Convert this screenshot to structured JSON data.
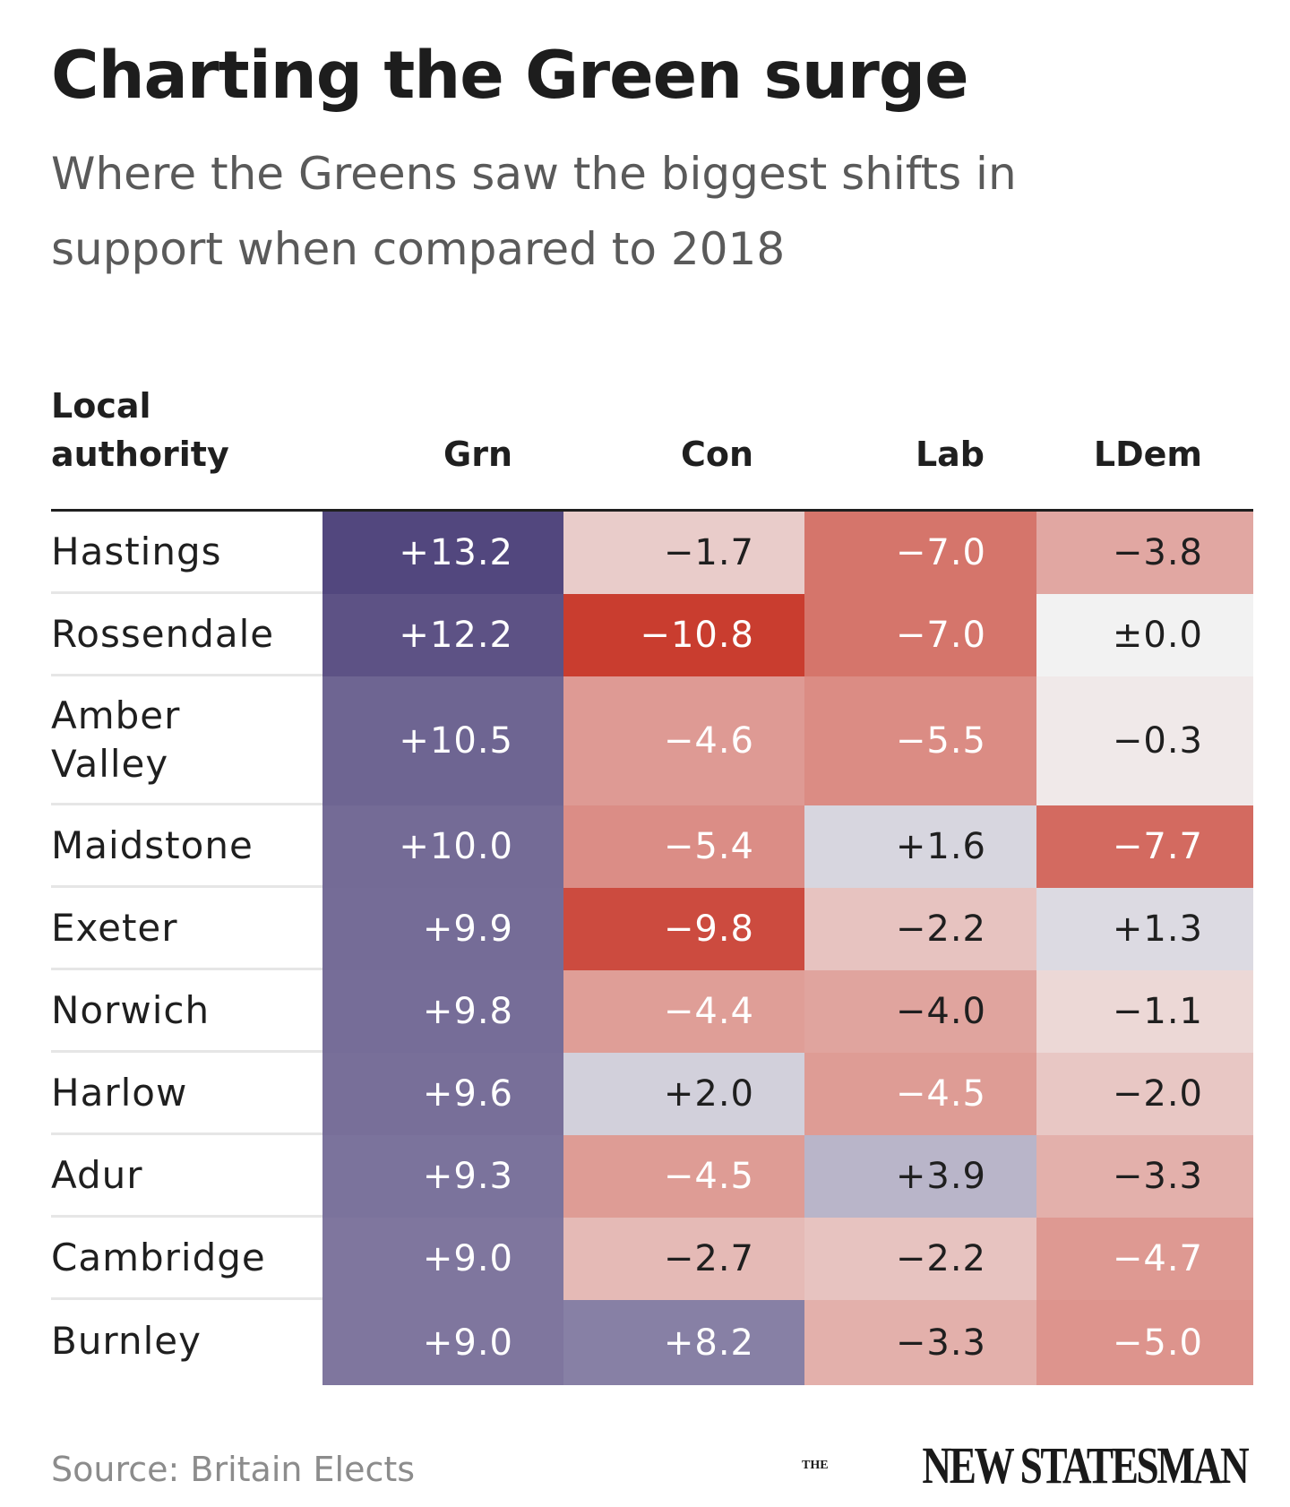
{
  "title": "Charting the Green surge",
  "subtitle": "Where the Greens saw the biggest shifts in support when compared to 2018",
  "source": "Source: Britain Elects",
  "logo": {
    "the": "THE",
    "name": "NEW STATESMAN"
  },
  "chart_data": {
    "type": "table",
    "columns": [
      "Local authority",
      "Grn",
      "Con",
      "Lab",
      "LDem"
    ],
    "rows": [
      {
        "name": "Hastings",
        "values": [
          "+13.2",
          "−1.7",
          "−7.0",
          "−3.8"
        ]
      },
      {
        "name": "Rossendale",
        "values": [
          "+12.2",
          "−10.8",
          "−7.0",
          "±0.0"
        ]
      },
      {
        "name": "Amber Valley",
        "values": [
          "+10.5",
          "−4.6",
          "−5.5",
          "−0.3"
        ]
      },
      {
        "name": "Maidstone",
        "values": [
          "+10.0",
          "−5.4",
          "+1.6",
          "−7.7"
        ]
      },
      {
        "name": "Exeter",
        "values": [
          "+9.9",
          "−9.8",
          "−2.2",
          "+1.3"
        ]
      },
      {
        "name": "Norwich",
        "values": [
          "+9.8",
          "−4.4",
          "−4.0",
          "−1.1"
        ]
      },
      {
        "name": "Harlow",
        "values": [
          "+9.6",
          "+2.0",
          "−4.5",
          "−2.0"
        ]
      },
      {
        "name": "Adur",
        "values": [
          "+9.3",
          "−4.5",
          "+3.9",
          "−3.3"
        ]
      },
      {
        "name": "Cambridge",
        "values": [
          "+9.0",
          "−2.7",
          "−2.2",
          "−4.7"
        ]
      },
      {
        "name": "Burnley",
        "values": [
          "+9.0",
          "+8.2",
          "−3.3",
          "−5.0"
        ]
      }
    ],
    "color_scale": {
      "negative": "#c83a2c",
      "neutral": "#f2f2f2",
      "positive": "#4a3e78"
    }
  }
}
